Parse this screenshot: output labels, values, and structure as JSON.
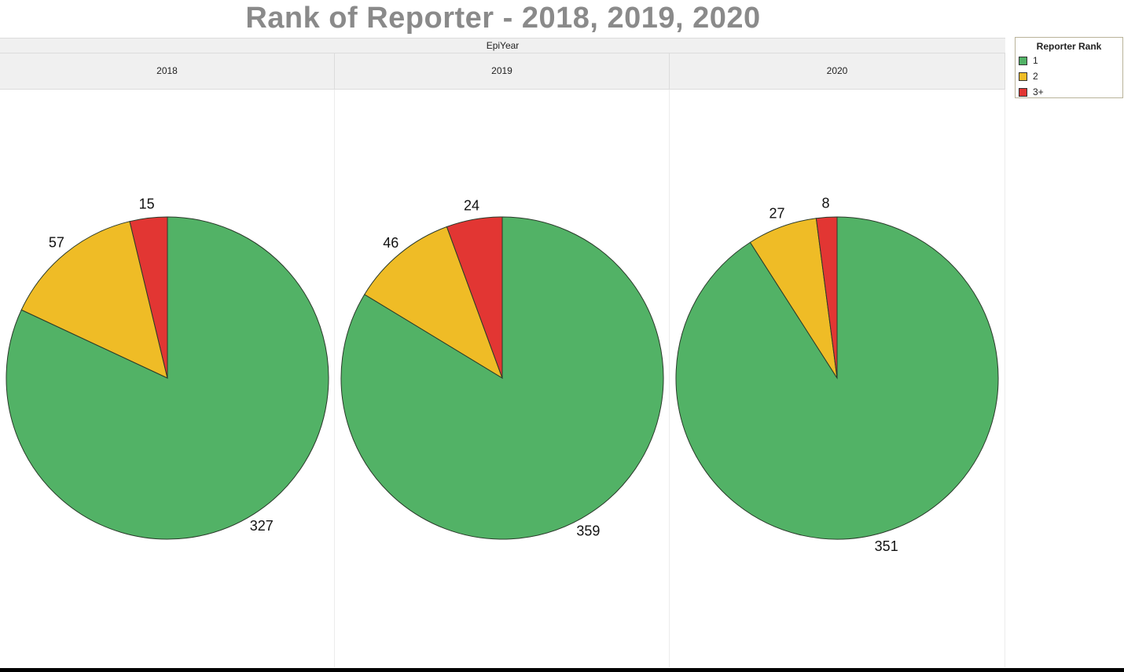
{
  "chart_data": {
    "type": "pie",
    "title": "Rank of Reporter - 2018, 2019, 2020",
    "column_header": "EpiYear",
    "legend_title": "Reporter Rank",
    "categories": [
      "1",
      "2",
      "3+"
    ],
    "colors": [
      "#52b266",
      "#efbc26",
      "#e23633"
    ],
    "series": [
      {
        "name": "2018",
        "values": [
          327,
          57,
          15
        ]
      },
      {
        "name": "2019",
        "values": [
          359,
          46,
          24
        ]
      },
      {
        "name": "2020",
        "values": [
          351,
          27,
          8
        ]
      }
    ]
  }
}
